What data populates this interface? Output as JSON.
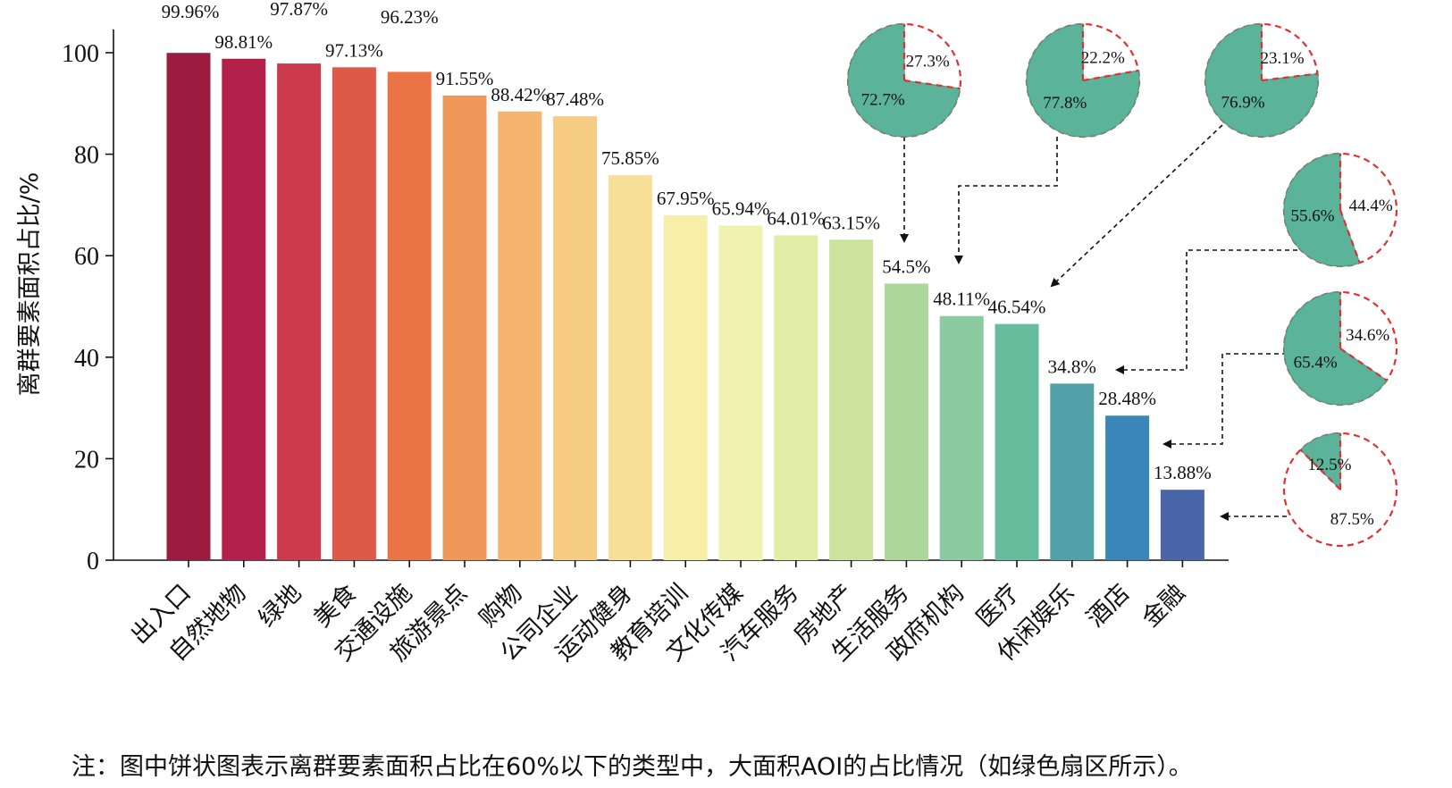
{
  "chart_data": {
    "type": "bar",
    "ylabel": "离群要素面积占比/%",
    "ylim": [
      0,
      100
    ],
    "yticks": [
      0,
      20,
      40,
      60,
      80,
      100
    ],
    "categories": [
      "出入口",
      "自然地物",
      "绿地",
      "美食",
      "交通设施",
      "旅游景点",
      "购物",
      "公司企业",
      "运动健身",
      "教育培训",
      "文化传媒",
      "汽车服务",
      "房地产",
      "生活服务",
      "政府机构",
      "医疗",
      "休闲娱乐",
      "酒店",
      "金融"
    ],
    "values": [
      99.96,
      98.81,
      97.87,
      97.13,
      96.23,
      91.55,
      88.42,
      87.48,
      75.85,
      67.95,
      65.94,
      64.01,
      63.15,
      54.5,
      48.11,
      46.54,
      34.8,
      28.48,
      13.88
    ],
    "value_labels": [
      "99.96%",
      "98.81%",
      "97.87%",
      "97.13%",
      "96.23%",
      "91.55%",
      "88.42%",
      "87.48%",
      "75.85%",
      "67.95%",
      "65.94%",
      "64.01%",
      "63.15%",
      "54.5%",
      "48.11%",
      "46.54%",
      "34.8%",
      "28.48%",
      "13.88%"
    ],
    "colors": [
      "#9b1c3e",
      "#b3214a",
      "#cc3a4c",
      "#dd5a48",
      "#ea7446",
      "#f0975a",
      "#f5b56e",
      "#f6cb82",
      "#f7df98",
      "#f7eeaa",
      "#f0f2b0",
      "#e2eda6",
      "#cbe39c",
      "#acd69c",
      "#8bcb9f",
      "#67bc9e",
      "#52a1a8",
      "#3a86b8",
      "#4a66a8"
    ],
    "pies": [
      {
        "category": "生活服务",
        "large": 72.7,
        "small": 27.3,
        "large_label": "72.7%",
        "small_label": "27.3%"
      },
      {
        "category": "政府机构",
        "large": 77.8,
        "small": 22.2,
        "large_label": "77.8%",
        "small_label": "22.2%"
      },
      {
        "category": "医疗",
        "large": 76.9,
        "small": 23.1,
        "large_label": "76.9%",
        "small_label": "23.1%"
      },
      {
        "category": "休闲娱乐",
        "large": 55.6,
        "small": 44.4,
        "large_label": "55.6%",
        "small_label": "44.4%"
      },
      {
        "category": "酒店",
        "large": 65.4,
        "small": 34.6,
        "large_label": "65.4%",
        "small_label": "34.6%"
      },
      {
        "category": "金融",
        "large": 12.5,
        "small": 87.5,
        "large_label": "12.5%",
        "small_label": "87.5%"
      }
    ],
    "pie_colors": {
      "large": "#5bb39a",
      "large_stroke": "#4a9f88",
      "small_border": "#e03030"
    }
  },
  "note": "注：图中饼状图表示离群要素面积占比在60%以下的类型中，大面积AOI的占比情况（如绿色扇区所示）。"
}
